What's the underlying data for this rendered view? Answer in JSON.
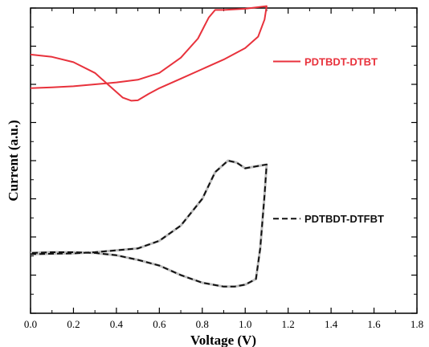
{
  "chart_data": {
    "type": "line",
    "title": "",
    "xlabel": "Voltage (V)",
    "ylabel": "Current (a.u.)",
    "xlim": [
      0.0,
      1.8
    ],
    "ylim": [
      0,
      8
    ],
    "x_ticks": [
      "0.0",
      "0.2",
      "0.4",
      "0.6",
      "0.8",
      "1.0",
      "1.2",
      "1.4",
      "1.6",
      "1.8"
    ],
    "y_tick_labels_shown": false,
    "grid": false,
    "legend_placement": "right (inline, next to each curve)",
    "series": [
      {
        "name": "PDTBDT-DTBT",
        "color": "#e8323c",
        "line_style": "solid",
        "points": [
          [
            0.0,
            5.9
          ],
          [
            0.1,
            5.92
          ],
          [
            0.2,
            5.95
          ],
          [
            0.3,
            6.0
          ],
          [
            0.4,
            6.05
          ],
          [
            0.5,
            6.12
          ],
          [
            0.6,
            6.3
          ],
          [
            0.7,
            6.7
          ],
          [
            0.78,
            7.2
          ],
          [
            0.83,
            7.75
          ],
          [
            0.86,
            7.95
          ],
          [
            0.9,
            7.95
          ],
          [
            1.0,
            7.98
          ],
          [
            1.1,
            8.05
          ],
          [
            1.09,
            7.7
          ],
          [
            1.06,
            7.25
          ],
          [
            1.0,
            6.95
          ],
          [
            0.9,
            6.65
          ],
          [
            0.8,
            6.4
          ],
          [
            0.7,
            6.15
          ],
          [
            0.6,
            5.9
          ],
          [
            0.55,
            5.75
          ],
          [
            0.5,
            5.58
          ],
          [
            0.47,
            5.57
          ],
          [
            0.43,
            5.65
          ],
          [
            0.38,
            5.9
          ],
          [
            0.3,
            6.3
          ],
          [
            0.2,
            6.58
          ],
          [
            0.1,
            6.72
          ],
          [
            0.0,
            6.78
          ]
        ]
      },
      {
        "name": "PDTBDT-DTFBT",
        "color": "#111111",
        "line_style": "dashed",
        "points": [
          [
            0.0,
            1.55
          ],
          [
            0.1,
            1.56
          ],
          [
            0.2,
            1.57
          ],
          [
            0.3,
            1.6
          ],
          [
            0.4,
            1.65
          ],
          [
            0.5,
            1.7
          ],
          [
            0.6,
            1.9
          ],
          [
            0.7,
            2.3
          ],
          [
            0.8,
            3.0
          ],
          [
            0.86,
            3.7
          ],
          [
            0.92,
            4.0
          ],
          [
            0.96,
            3.95
          ],
          [
            1.0,
            3.8
          ],
          [
            1.05,
            3.85
          ],
          [
            1.1,
            3.9
          ],
          [
            1.09,
            3.1
          ],
          [
            1.07,
            1.7
          ],
          [
            1.05,
            0.9
          ],
          [
            1.0,
            0.75
          ],
          [
            0.95,
            0.7
          ],
          [
            0.9,
            0.7
          ],
          [
            0.8,
            0.8
          ],
          [
            0.7,
            1.0
          ],
          [
            0.6,
            1.25
          ],
          [
            0.5,
            1.4
          ],
          [
            0.4,
            1.52
          ],
          [
            0.3,
            1.58
          ],
          [
            0.2,
            1.6
          ],
          [
            0.1,
            1.6
          ],
          [
            0.0,
            1.58
          ]
        ]
      }
    ]
  }
}
